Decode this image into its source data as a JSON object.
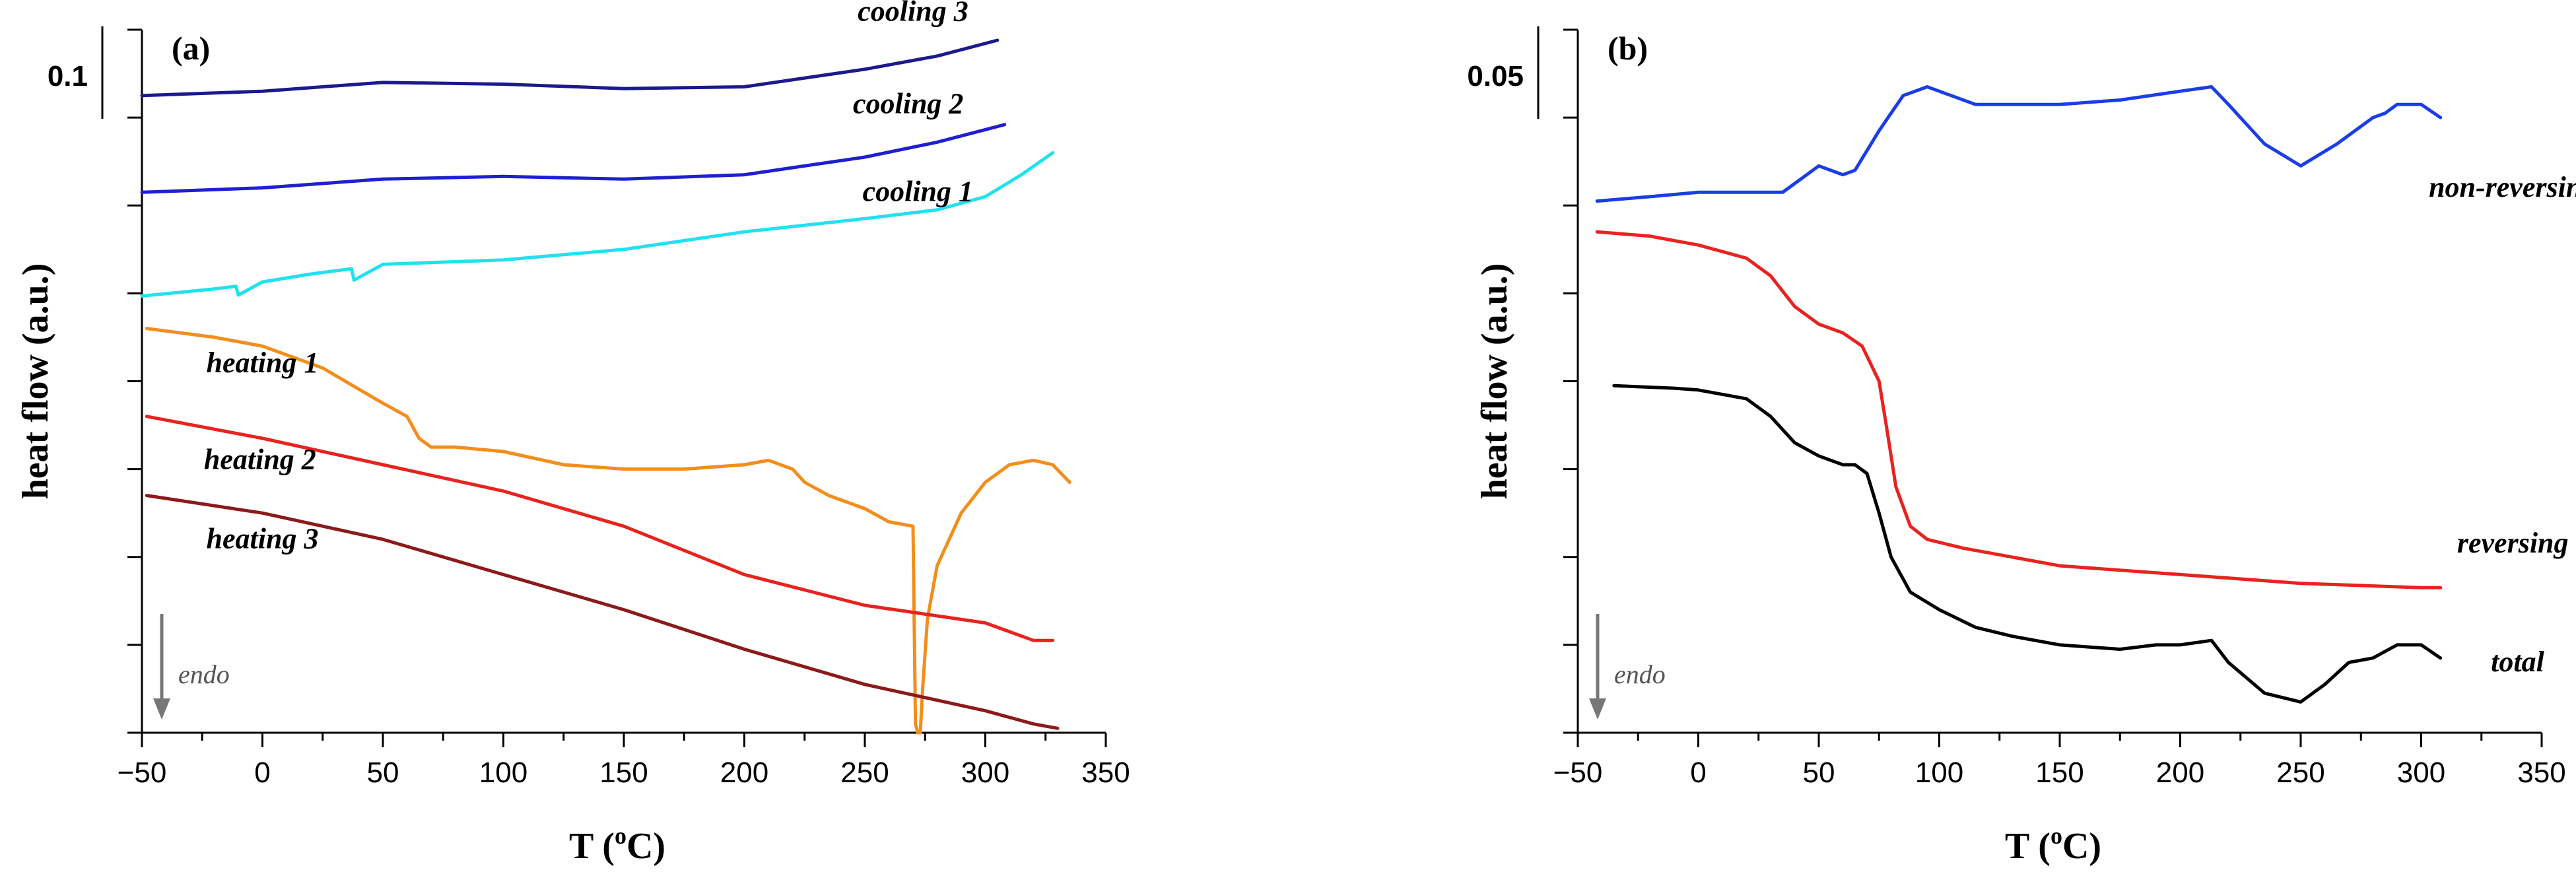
{
  "chart_data": [
    {
      "type": "line",
      "panel_label": "(a)",
      "xlabel_main": "T (",
      "xlabel_sup": "o",
      "xlabel_tail": "C)",
      "ylabel": "heat flow (a.u.)",
      "xlim": [
        -50,
        350
      ],
      "x_ticks": [
        -50,
        0,
        50,
        100,
        150,
        200,
        250,
        300,
        350
      ],
      "x_tick_labels": [
        "−50",
        "0",
        "50",
        "100",
        "150",
        "200",
        "250",
        "300",
        "350"
      ],
      "ylim": [
        0,
        8
      ],
      "y_ticks": [
        0,
        1,
        2,
        3,
        4,
        5,
        6,
        7,
        8
      ],
      "scale_bar": {
        "label": "0.1",
        "value": 0.1
      },
      "endo_marker": {
        "label": "endo",
        "direction": "down"
      },
      "series": [
        {
          "name": "cooling 3",
          "color": "#1a1a8c",
          "label_anchor": [
            270,
            8.1
          ],
          "x": [
            -50,
            0,
            25,
            50,
            100,
            150,
            200,
            250,
            280,
            305
          ],
          "y": [
            7.25,
            7.3,
            7.35,
            7.4,
            7.38,
            7.33,
            7.35,
            7.55,
            7.7,
            7.88
          ]
        },
        {
          "name": "cooling 2",
          "color": "#1f1fd0",
          "label_anchor": [
            268,
            7.05
          ],
          "x": [
            -50,
            0,
            50,
            100,
            150,
            200,
            250,
            280,
            308
          ],
          "y": [
            6.15,
            6.2,
            6.3,
            6.33,
            6.3,
            6.35,
            6.55,
            6.72,
            6.92
          ]
        },
        {
          "name": "cooling 1",
          "color": "#21e1ef",
          "label_anchor": [
            272,
            6.05
          ],
          "x": [
            -50,
            -20,
            -11,
            -10,
            0,
            20,
            37,
            38,
            50,
            100,
            150,
            200,
            250,
            280,
            300,
            315,
            328
          ],
          "y": [
            4.97,
            5.05,
            5.08,
            4.98,
            5.13,
            5.22,
            5.28,
            5.15,
            5.33,
            5.38,
            5.5,
            5.7,
            5.85,
            5.95,
            6.1,
            6.35,
            6.6
          ]
        },
        {
          "name": "heating 1",
          "color": "#f28e1c",
          "label_anchor": [
            0,
            4.1
          ],
          "x": [
            -48,
            -20,
            0,
            25,
            50,
            60,
            65,
            70,
            80,
            100,
            125,
            150,
            175,
            200,
            210,
            220,
            225,
            235,
            250,
            260,
            270,
            271,
            272,
            273,
            274,
            276,
            280,
            290,
            300,
            310,
            320,
            328,
            335
          ],
          "y": [
            4.6,
            4.5,
            4.4,
            4.15,
            3.75,
            3.6,
            3.35,
            3.25,
            3.25,
            3.2,
            3.05,
            3.0,
            3.0,
            3.05,
            3.1,
            3.0,
            2.85,
            2.7,
            2.55,
            2.4,
            2.35,
            0.1,
            0.0,
            0.0,
            0.5,
            1.3,
            1.9,
            2.5,
            2.85,
            3.05,
            3.1,
            3.05,
            2.85
          ]
        },
        {
          "name": "heating 2",
          "color": "#e8231f",
          "label_anchor": [
            -1,
            3.0
          ],
          "x": [
            -48,
            0,
            50,
            100,
            150,
            200,
            250,
            300,
            320,
            328
          ],
          "y": [
            3.6,
            3.35,
            3.05,
            2.75,
            2.35,
            1.8,
            1.45,
            1.25,
            1.05,
            1.05
          ]
        },
        {
          "name": "heating 3",
          "color": "#8b1a1a",
          "label_anchor": [
            0,
            2.1
          ],
          "x": [
            -48,
            0,
            50,
            100,
            150,
            200,
            250,
            300,
            320,
            330
          ],
          "y": [
            2.7,
            2.5,
            2.2,
            1.8,
            1.4,
            0.95,
            0.55,
            0.25,
            0.1,
            0.05
          ]
        }
      ]
    },
    {
      "type": "line",
      "panel_label": "(b)",
      "xlabel_main": "T (",
      "xlabel_sup": "o",
      "xlabel_tail": "C)",
      "ylabel": "heat flow (a.u.)",
      "xlim": [
        -50,
        350
      ],
      "x_ticks": [
        -50,
        0,
        50,
        100,
        150,
        200,
        250,
        300,
        350
      ],
      "x_tick_labels": [
        "−50",
        "0",
        "50",
        "100",
        "150",
        "200",
        "250",
        "300",
        "350"
      ],
      "ylim": [
        0,
        8
      ],
      "y_ticks": [
        0,
        1,
        2,
        3,
        4,
        5,
        6,
        7,
        8
      ],
      "scale_bar": {
        "label": "0.05",
        "value": 0.05
      },
      "endo_marker": {
        "label": "endo",
        "direction": "down"
      },
      "series": [
        {
          "name": "non-reversing",
          "color": "#1a3de6",
          "label_anchor": [
            338,
            6.1
          ],
          "x": [
            -42,
            -20,
            0,
            20,
            35,
            45,
            50,
            60,
            65,
            75,
            85,
            95,
            100,
            115,
            150,
            175,
            200,
            213,
            220,
            235,
            250,
            265,
            280,
            285,
            290,
            300,
            308
          ],
          "y": [
            6.05,
            6.1,
            6.15,
            6.15,
            6.15,
            6.35,
            6.45,
            6.35,
            6.4,
            6.85,
            7.25,
            7.35,
            7.3,
            7.15,
            7.15,
            7.2,
            7.3,
            7.35,
            7.15,
            6.7,
            6.45,
            6.7,
            7.0,
            7.05,
            7.15,
            7.15,
            7.0
          ]
        },
        {
          "name": "reversing",
          "color": "#e8231f",
          "label_anchor": [
            338,
            2.05
          ],
          "x": [
            -42,
            -20,
            0,
            20,
            30,
            40,
            50,
            60,
            68,
            75,
            78,
            82,
            88,
            95,
            110,
            150,
            200,
            250,
            300,
            308
          ],
          "y": [
            5.7,
            5.65,
            5.55,
            5.4,
            5.2,
            4.85,
            4.65,
            4.55,
            4.4,
            4.0,
            3.5,
            2.8,
            2.35,
            2.2,
            2.1,
            1.9,
            1.8,
            1.7,
            1.65,
            1.65
          ]
        },
        {
          "name": "total",
          "color": "#000000",
          "label_anchor": [
            340,
            0.7
          ],
          "x": [
            -35,
            -10,
            0,
            20,
            30,
            40,
            50,
            60,
            65,
            70,
            75,
            80,
            88,
            100,
            115,
            130,
            150,
            175,
            190,
            200,
            213,
            220,
            235,
            250,
            260,
            270,
            280,
            290,
            300,
            308
          ],
          "y": [
            3.95,
            3.92,
            3.9,
            3.8,
            3.6,
            3.3,
            3.15,
            3.05,
            3.05,
            2.95,
            2.5,
            2.0,
            1.6,
            1.4,
            1.2,
            1.1,
            1.0,
            0.95,
            1.0,
            1.0,
            1.05,
            0.8,
            0.45,
            0.35,
            0.55,
            0.8,
            0.85,
            1.0,
            1.0,
            0.85
          ]
        }
      ]
    }
  ]
}
